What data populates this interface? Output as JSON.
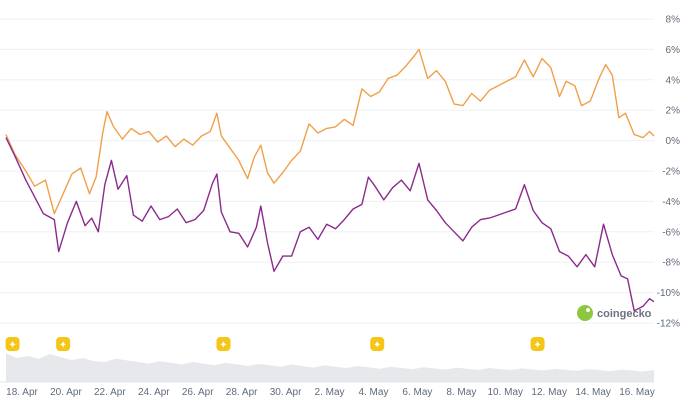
{
  "watermark": {
    "text": "coingecko"
  },
  "chart_data": {
    "type": "line",
    "y_ticks": [
      "8%",
      "6%",
      "4%",
      "2%",
      "0%",
      "-2%",
      "-4%",
      "-6%",
      "-8%",
      "-10%",
      "-12%"
    ],
    "y_tick_values": [
      8,
      6,
      4,
      2,
      0,
      -2,
      -4,
      -6,
      -8,
      -10,
      -12
    ],
    "ylim": [
      -12,
      8
    ],
    "xlim": [
      0,
      29.5
    ],
    "x_ticks": [
      "18. Apr",
      "20. Apr",
      "22. Apr",
      "24. Apr",
      "26. Apr",
      "28. Apr",
      "30. Apr",
      "2. May",
      "4. May",
      "6. May",
      "8. May",
      "10. May",
      "12. May",
      "14. May",
      "16. May"
    ],
    "x_tick_values": [
      0,
      2,
      4,
      6,
      8,
      10,
      12,
      14,
      16,
      18,
      20,
      22,
      24,
      26,
      28
    ],
    "grid": "horizontal",
    "colors": {
      "orange": "#f0a04b",
      "purple": "#8a2b8c",
      "grid": "#eef0f3",
      "volume": "#e6e8ec",
      "event": "#f5c518"
    },
    "series": [
      {
        "color": "#f0a04b",
        "points": [
          [
            0,
            0.4
          ],
          [
            0.4,
            -0.9
          ],
          [
            0.9,
            -2.0
          ],
          [
            1.3,
            -3.0
          ],
          [
            1.8,
            -2.6
          ],
          [
            2.2,
            -4.8
          ],
          [
            2.6,
            -3.5
          ],
          [
            3.0,
            -2.2
          ],
          [
            3.4,
            -1.8
          ],
          [
            3.8,
            -3.5
          ],
          [
            4.1,
            -2.4
          ],
          [
            4.4,
            0.5
          ],
          [
            4.6,
            1.9
          ],
          [
            4.9,
            0.9
          ],
          [
            5.3,
            0.1
          ],
          [
            5.7,
            0.8
          ],
          [
            6.1,
            0.4
          ],
          [
            6.5,
            0.6
          ],
          [
            6.9,
            -0.1
          ],
          [
            7.3,
            0.3
          ],
          [
            7.7,
            -0.4
          ],
          [
            8.1,
            0.1
          ],
          [
            8.5,
            -0.3
          ],
          [
            8.9,
            0.3
          ],
          [
            9.3,
            0.6
          ],
          [
            9.6,
            1.8
          ],
          [
            9.8,
            0.3
          ],
          [
            10.2,
            -0.5
          ],
          [
            10.6,
            -1.3
          ],
          [
            11.0,
            -2.5
          ],
          [
            11.3,
            -1.1
          ],
          [
            11.6,
            -0.3
          ],
          [
            11.9,
            -2.1
          ],
          [
            12.2,
            -2.8
          ],
          [
            12.6,
            -2.1
          ],
          [
            13.0,
            -1.3
          ],
          [
            13.4,
            -0.7
          ],
          [
            13.8,
            1.1
          ],
          [
            14.2,
            0.5
          ],
          [
            14.6,
            0.8
          ],
          [
            15.0,
            0.9
          ],
          [
            15.4,
            1.4
          ],
          [
            15.8,
            1.0
          ],
          [
            16.2,
            3.4
          ],
          [
            16.6,
            2.9
          ],
          [
            17.0,
            3.2
          ],
          [
            17.4,
            4.1
          ],
          [
            17.8,
            4.3
          ],
          [
            18.2,
            4.9
          ],
          [
            18.6,
            5.6
          ],
          [
            18.8,
            6.0
          ],
          [
            19.2,
            4.1
          ],
          [
            19.6,
            4.6
          ],
          [
            20.0,
            3.9
          ],
          [
            20.4,
            2.4
          ],
          [
            20.8,
            2.3
          ],
          [
            21.2,
            3.1
          ],
          [
            21.6,
            2.6
          ],
          [
            22.0,
            3.3
          ],
          [
            22.4,
            3.6
          ],
          [
            22.8,
            3.9
          ],
          [
            23.2,
            4.2
          ],
          [
            23.6,
            5.3
          ],
          [
            24.0,
            4.2
          ],
          [
            24.4,
            5.4
          ],
          [
            24.8,
            4.8
          ],
          [
            25.2,
            2.9
          ],
          [
            25.5,
            3.9
          ],
          [
            25.9,
            3.6
          ],
          [
            26.2,
            2.3
          ],
          [
            26.6,
            2.6
          ],
          [
            27.0,
            4.1
          ],
          [
            27.3,
            5.0
          ],
          [
            27.6,
            4.3
          ],
          [
            27.9,
            1.5
          ],
          [
            28.2,
            1.8
          ],
          [
            28.6,
            0.4
          ],
          [
            29.0,
            0.2
          ],
          [
            29.3,
            0.6
          ],
          [
            29.5,
            0.3
          ]
        ]
      },
      {
        "color": "#8a2b8c",
        "points": [
          [
            0,
            0.2
          ],
          [
            0.4,
            -1.0
          ],
          [
            0.9,
            -2.6
          ],
          [
            1.3,
            -3.7
          ],
          [
            1.7,
            -4.8
          ],
          [
            2.2,
            -5.2
          ],
          [
            2.4,
            -7.3
          ],
          [
            2.8,
            -5.4
          ],
          [
            3.2,
            -4.0
          ],
          [
            3.6,
            -5.6
          ],
          [
            3.9,
            -5.1
          ],
          [
            4.2,
            -6.0
          ],
          [
            4.5,
            -2.9
          ],
          [
            4.8,
            -1.3
          ],
          [
            5.1,
            -3.2
          ],
          [
            5.5,
            -2.3
          ],
          [
            5.8,
            -4.9
          ],
          [
            6.2,
            -5.3
          ],
          [
            6.6,
            -4.3
          ],
          [
            7.0,
            -5.2
          ],
          [
            7.4,
            -5.0
          ],
          [
            7.8,
            -4.5
          ],
          [
            8.2,
            -5.4
          ],
          [
            8.6,
            -5.2
          ],
          [
            9.0,
            -4.6
          ],
          [
            9.4,
            -2.8
          ],
          [
            9.6,
            -2.2
          ],
          [
            9.8,
            -4.7
          ],
          [
            10.2,
            -6.0
          ],
          [
            10.6,
            -6.1
          ],
          [
            11.0,
            -7.0
          ],
          [
            11.4,
            -5.7
          ],
          [
            11.6,
            -4.3
          ],
          [
            11.9,
            -6.7
          ],
          [
            12.2,
            -8.6
          ],
          [
            12.6,
            -7.6
          ],
          [
            13.0,
            -7.6
          ],
          [
            13.4,
            -6.0
          ],
          [
            13.8,
            -5.7
          ],
          [
            14.2,
            -6.5
          ],
          [
            14.6,
            -5.5
          ],
          [
            15.0,
            -5.8
          ],
          [
            15.4,
            -5.2
          ],
          [
            15.8,
            -4.5
          ],
          [
            16.2,
            -4.2
          ],
          [
            16.5,
            -2.4
          ],
          [
            16.8,
            -3.0
          ],
          [
            17.2,
            -3.9
          ],
          [
            17.6,
            -3.1
          ],
          [
            18.0,
            -2.6
          ],
          [
            18.4,
            -3.3
          ],
          [
            18.8,
            -1.5
          ],
          [
            19.2,
            -3.9
          ],
          [
            19.6,
            -4.6
          ],
          [
            20.0,
            -5.4
          ],
          [
            20.4,
            -6.0
          ],
          [
            20.8,
            -6.6
          ],
          [
            21.2,
            -5.7
          ],
          [
            21.6,
            -5.2
          ],
          [
            22.0,
            -5.1
          ],
          [
            22.4,
            -4.9
          ],
          [
            22.8,
            -4.7
          ],
          [
            23.2,
            -4.5
          ],
          [
            23.6,
            -2.9
          ],
          [
            24.0,
            -4.6
          ],
          [
            24.4,
            -5.4
          ],
          [
            24.8,
            -5.8
          ],
          [
            25.2,
            -7.3
          ],
          [
            25.6,
            -7.6
          ],
          [
            26.0,
            -8.3
          ],
          [
            26.4,
            -7.5
          ],
          [
            26.8,
            -8.3
          ],
          [
            27.2,
            -5.5
          ],
          [
            27.6,
            -7.5
          ],
          [
            28.0,
            -8.9
          ],
          [
            28.3,
            -9.1
          ],
          [
            28.6,
            -11.2
          ],
          [
            29.0,
            -10.9
          ],
          [
            29.3,
            -10.4
          ],
          [
            29.5,
            -10.6
          ]
        ]
      }
    ],
    "events": [
      {
        "x": 0.3,
        "symbol": "✦"
      },
      {
        "x": 2.6,
        "symbol": "✦"
      },
      {
        "x": 9.9,
        "symbol": "✦"
      },
      {
        "x": 16.9,
        "symbol": "✦"
      },
      {
        "x": 24.2,
        "symbol": "✦"
      }
    ],
    "volume": [
      0.72,
      0.6,
      0.65,
      0.58,
      0.7,
      0.62,
      0.55,
      0.6,
      0.52,
      0.5,
      0.58,
      0.54,
      0.5,
      0.46,
      0.52,
      0.48,
      0.44,
      0.5,
      0.46,
      0.42,
      0.48,
      0.44,
      0.4,
      0.45,
      0.42,
      0.38,
      0.44,
      0.4,
      0.36,
      0.42,
      0.38,
      0.35,
      0.4,
      0.37,
      0.33,
      0.38,
      0.35,
      0.32,
      0.37,
      0.34,
      0.31,
      0.36,
      0.33,
      0.3,
      0.35,
      0.32,
      0.3,
      0.34,
      0.31,
      0.29,
      0.33,
      0.3,
      0.28,
      0.32,
      0.3,
      0.27,
      0.31,
      0.29,
      0.26,
      0.3
    ]
  }
}
